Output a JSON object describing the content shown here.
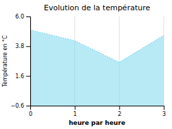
{
  "chart_data": {
    "type": "area",
    "title": "Evolution de la température",
    "x_label": "heure par heure",
    "y_label": "Température en °C",
    "x": [
      0,
      1,
      2,
      3
    ],
    "values": [
      5.0,
      4.2,
      2.6,
      4.6
    ],
    "color": "#7dd8ee",
    "line_style": "dotted",
    "xlim": [
      0,
      3
    ],
    "ylim": [
      -0.6,
      6.0
    ],
    "xticks": [
      0,
      1,
      2,
      3
    ],
    "yticks": [
      {
        "value": -0.6,
        "label": "−0.6"
      },
      1.6,
      3.8,
      {
        "value": 6.0,
        "label": "6.0"
      }
    ],
    "grid": "x"
  }
}
